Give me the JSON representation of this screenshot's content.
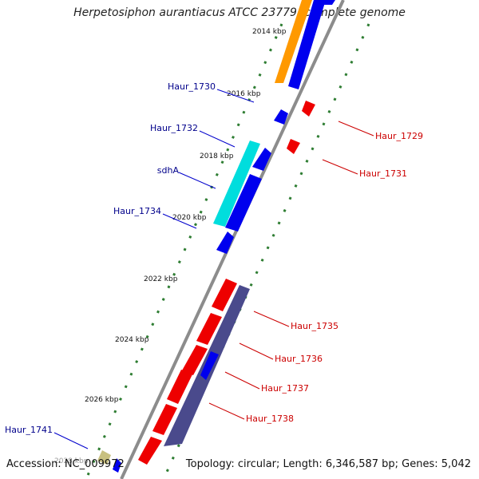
{
  "title": "Herpetosiphon aurantiacus ATCC 23779, complete genome",
  "footer": {
    "accession": "Accession: NC_009972",
    "topology": "Topology: circular; Length: 6,346,587 bp; Genes: 5,042"
  },
  "ruler": {
    "ticks": [
      "2014 kbp",
      "2016 kbp",
      "2018 kbp",
      "2020 kbp",
      "2022 kbp",
      "2024 kbp",
      "2026 kbp"
    ],
    "partial_tick": "2028 kbp"
  },
  "genes": {
    "forward": [
      "Haur_1730",
      "Haur_1732",
      "sdhA",
      "Haur_1734",
      "Haur_1741"
    ],
    "reverse": [
      "Haur_1729",
      "Haur_1731",
      "Haur_1735",
      "Haur_1736",
      "Haur_1737",
      "Haur_1738"
    ]
  },
  "colors": {
    "forward_label": "#00008b",
    "reverse_label": "#cc0000",
    "forward_cds": "#0000ee",
    "reverse_cds": "#ee0000",
    "orange_feature": "#ff9900",
    "cyan_feature": "#00dddd",
    "slate_feature": "#4a4a8c",
    "khaki_feature": "#c8c080",
    "backbone": "#8c8c8c",
    "ruler_dots": "#2e7d32"
  }
}
